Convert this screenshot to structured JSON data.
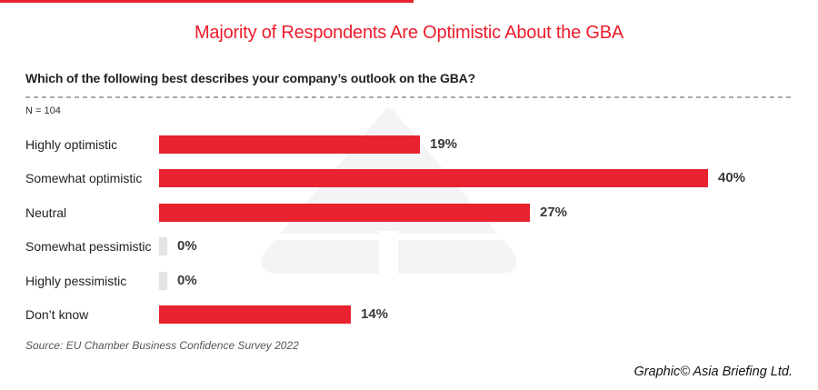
{
  "title": {
    "text": "Majority of Respondents Are Optimistic About the GBA"
  },
  "question": {
    "text": "Which of the following best describes your company’s outlook on the GBA?"
  },
  "sample_note": "N = 104",
  "footer": {
    "source": "Source: EU Chamber Business Confidence Survey 2022",
    "credit": "Graphic© Asia Briefing Ltd."
  },
  "colors": {
    "accent_red": "#e8222e",
    "title_red": "#ed1c2c",
    "zero_bar_gray": "#e4e4e6",
    "value_text": "#3a3a3a",
    "dashed_rule_gray": "#a7a9ac",
    "watermark_gray": "#f4f4f6"
  },
  "watermark_name": "asia-briefing-logo-watermark",
  "chart_data": {
    "type": "bar",
    "orientation": "horizontal",
    "title": "Majority of Respondents Are Optimistic About the GBA",
    "question": "Which of the following best describes your company’s outlook on the GBA?",
    "sample_size": 104,
    "categories": [
      "Highly optimistic",
      "Somewhat optimistic",
      "Neutral",
      "Somewhat pessimistic",
      "Highly pessimistic",
      "Don’t know"
    ],
    "values": [
      19,
      40,
      27,
      0,
      0,
      14
    ],
    "value_labels": [
      "19%",
      "40%",
      "27%",
      "0%",
      "0%",
      "14%"
    ],
    "unit": "%",
    "xlim": [
      0,
      45
    ],
    "grid": false,
    "legend": false,
    "bar_color": "#e8222e",
    "zero_stub_color": "#e4e4e6"
  }
}
